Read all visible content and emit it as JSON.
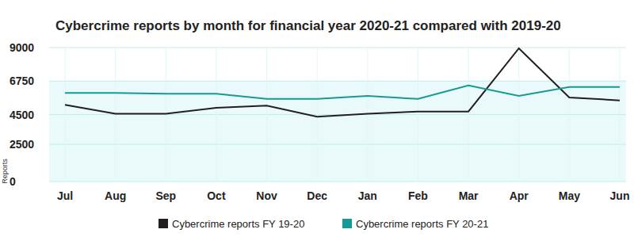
{
  "chart_data": {
    "type": "line",
    "title": "Cybercrime reports by month for financial year 2020-21 compared with 2019-20",
    "y_label": "Reports",
    "categories": [
      "Jul",
      "Aug",
      "Sep",
      "Oct",
      "Nov",
      "Dec",
      "Jan",
      "Feb",
      "Mar",
      "Apr",
      "May",
      "Jun"
    ],
    "series": [
      {
        "name": "Cybercrime reports FY 19-20",
        "color": "#231f20",
        "values": [
          5150,
          4550,
          4550,
          4950,
          5100,
          4350,
          4550,
          4700,
          4700,
          8950,
          5650,
          5450
        ]
      },
      {
        "name": "Cybercrime reports FY 20-21",
        "color": "#149b93",
        "values": [
          5950,
          5950,
          5900,
          5900,
          5550,
          5550,
          5750,
          5550,
          6450,
          5750,
          6350,
          6350
        ]
      }
    ],
    "ylim": [
      0,
      9000
    ],
    "yticks": [
      0,
      2500,
      4500,
      6750,
      9000
    ],
    "grid": true,
    "legend": "bottom"
  }
}
